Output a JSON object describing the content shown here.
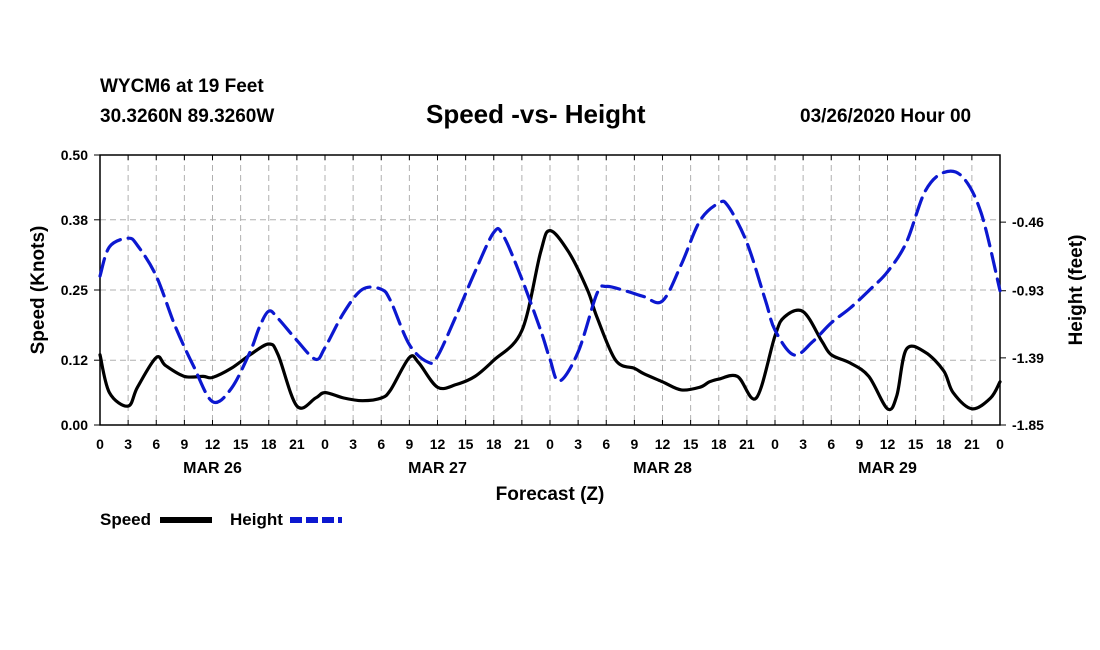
{
  "header": {
    "station": "WYCM6 at 19 Feet",
    "coords": "30.3260N 89.3260W",
    "title": "Speed -vs- Height",
    "timestamp": "03/26/2020 Hour 00"
  },
  "chart_data": {
    "type": "line",
    "title": "Speed -vs- Height",
    "xlabel": "Forecast (Z)",
    "ylabel": "Speed (Knots)",
    "y2label": "Height (feet)",
    "ylim": [
      0,
      0.5
    ],
    "y2lim": [
      -1.85,
      0.0
    ],
    "y_ticks": [
      "0.00",
      "0.12",
      "0.25",
      "0.38",
      "0.50"
    ],
    "y2_ticks": [
      "-1.85",
      "-1.39",
      "-0.93",
      "-0.46"
    ],
    "x_tick_labels": [
      "0",
      "3",
      "6",
      "9",
      "12",
      "15",
      "18",
      "21",
      "0",
      "3",
      "6",
      "9",
      "12",
      "15",
      "18",
      "21",
      "0",
      "3",
      "6",
      "9",
      "12",
      "15",
      "18",
      "21",
      "0",
      "3",
      "6",
      "9",
      "12",
      "15",
      "18",
      "21",
      "0"
    ],
    "day_labels": [
      "MAR 26",
      "MAR 27",
      "MAR 28",
      "MAR 29"
    ],
    "grid": true,
    "legend": {
      "position": "bottom-left",
      "entries": [
        "Speed",
        "Height"
      ]
    },
    "series": [
      {
        "name": "Speed",
        "color": "#000000",
        "style": "solid",
        "x_hours": [
          0,
          1,
          3,
          4,
          6,
          7,
          9,
          11,
          12,
          14,
          16,
          18,
          19,
          21,
          23,
          24,
          26,
          28,
          30,
          31,
          33,
          34,
          36,
          38,
          40,
          42,
          45,
          47,
          48,
          50,
          52,
          53,
          55,
          57,
          58,
          60,
          62,
          64,
          65,
          66,
          68,
          70,
          72,
          73,
          75,
          77,
          78,
          80,
          82,
          84,
          85,
          86,
          88,
          90,
          91,
          93,
          95,
          96
        ],
        "values": [
          0.13,
          0.06,
          0.035,
          0.07,
          0.125,
          0.11,
          0.09,
          0.09,
          0.088,
          0.105,
          0.13,
          0.15,
          0.13,
          0.035,
          0.05,
          0.06,
          0.05,
          0.045,
          0.05,
          0.065,
          0.125,
          0.115,
          0.07,
          0.075,
          0.09,
          0.12,
          0.175,
          0.32,
          0.36,
          0.32,
          0.25,
          0.2,
          0.12,
          0.105,
          0.095,
          0.08,
          0.065,
          0.07,
          0.08,
          0.085,
          0.09,
          0.05,
          0.165,
          0.2,
          0.21,
          0.155,
          0.13,
          0.115,
          0.09,
          0.03,
          0.055,
          0.14,
          0.135,
          0.1,
          0.06,
          0.03,
          0.05,
          0.08
        ]
      },
      {
        "name": "Height",
        "color": "#0c18d0",
        "style": "dashed",
        "x_hours": [
          0,
          1,
          3,
          4,
          6,
          8,
          10,
          12,
          14,
          16,
          17,
          18,
          19,
          21,
          23,
          24,
          26,
          28,
          30,
          31,
          33,
          35,
          36,
          38,
          40,
          42,
          43,
          45,
          47,
          48,
          49,
          51,
          53,
          54,
          56,
          58,
          60,
          62,
          64,
          66,
          67,
          69,
          71,
          72,
          74,
          76,
          78,
          80,
          82,
          84,
          86,
          88,
          90,
          92,
          94,
          96
        ],
        "values": [
          -0.83,
          -0.63,
          -0.57,
          -0.62,
          -0.83,
          -1.17,
          -1.45,
          -1.69,
          -1.6,
          -1.35,
          -1.18,
          -1.07,
          -1.12,
          -1.27,
          -1.4,
          -1.32,
          -1.08,
          -0.92,
          -0.92,
          -1.0,
          -1.3,
          -1.42,
          -1.38,
          -1.1,
          -0.8,
          -0.53,
          -0.55,
          -0.85,
          -1.2,
          -1.4,
          -1.55,
          -1.35,
          -0.95,
          -0.9,
          -0.93,
          -0.97,
          -1.0,
          -0.75,
          -0.45,
          -0.33,
          -0.35,
          -0.6,
          -1.0,
          -1.2,
          -1.37,
          -1.28,
          -1.15,
          -1.05,
          -0.93,
          -0.8,
          -0.6,
          -0.25,
          -0.12,
          -0.15,
          -0.4,
          -0.93
        ]
      }
    ]
  }
}
